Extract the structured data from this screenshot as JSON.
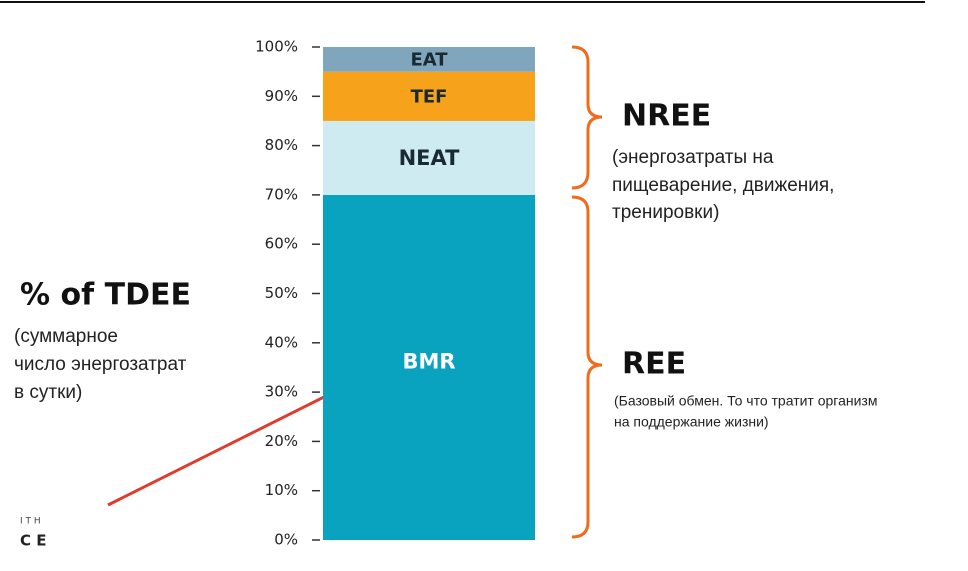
{
  "chart_data": {
    "type": "stacked_bar",
    "title": "% of TDEE",
    "subtitle_lines": [
      "(суммарное",
      "число энергозатрат",
      "в сутки)"
    ],
    "categories": [
      null
    ],
    "series": [
      {
        "name": "BMR",
        "color": "#0aa3bf",
        "values": [
          70
        ]
      },
      {
        "name": "NEAT",
        "color": "#cdebf0",
        "values": [
          15
        ]
      },
      {
        "name": "TEF",
        "color": "#f7a21b",
        "values": [
          10
        ]
      },
      {
        "name": "EAT",
        "color": "#7fa6bd",
        "values": [
          5
        ]
      }
    ],
    "ylim": [
      0,
      100
    ],
    "yticks": [
      {
        "value": 0,
        "label": "0%"
      },
      {
        "value": 10,
        "label": "10%"
      },
      {
        "value": 20,
        "label": "20%"
      },
      {
        "value": 30,
        "label": "30%"
      },
      {
        "value": 40,
        "label": "40%"
      },
      {
        "value": 50,
        "label": "50%"
      },
      {
        "value": 60,
        "label": "60%"
      },
      {
        "value": 70,
        "label": "70%"
      },
      {
        "value": 80,
        "label": "80%"
      },
      {
        "value": 90,
        "label": "90%"
      },
      {
        "value": 100,
        "label": "100%"
      }
    ],
    "annotations": {
      "nree": {
        "label": "NREE",
        "lines": [
          "(энергозатраты на",
          "пищеварение, движения,",
          "тренировки)"
        ]
      },
      "ree": {
        "label": "REE",
        "lines": [
          "(Базовый обмен. То что тратит организм",
          "на поддержание жизни)"
        ]
      }
    },
    "logo": [
      "I T H",
      "C E"
    ]
  }
}
